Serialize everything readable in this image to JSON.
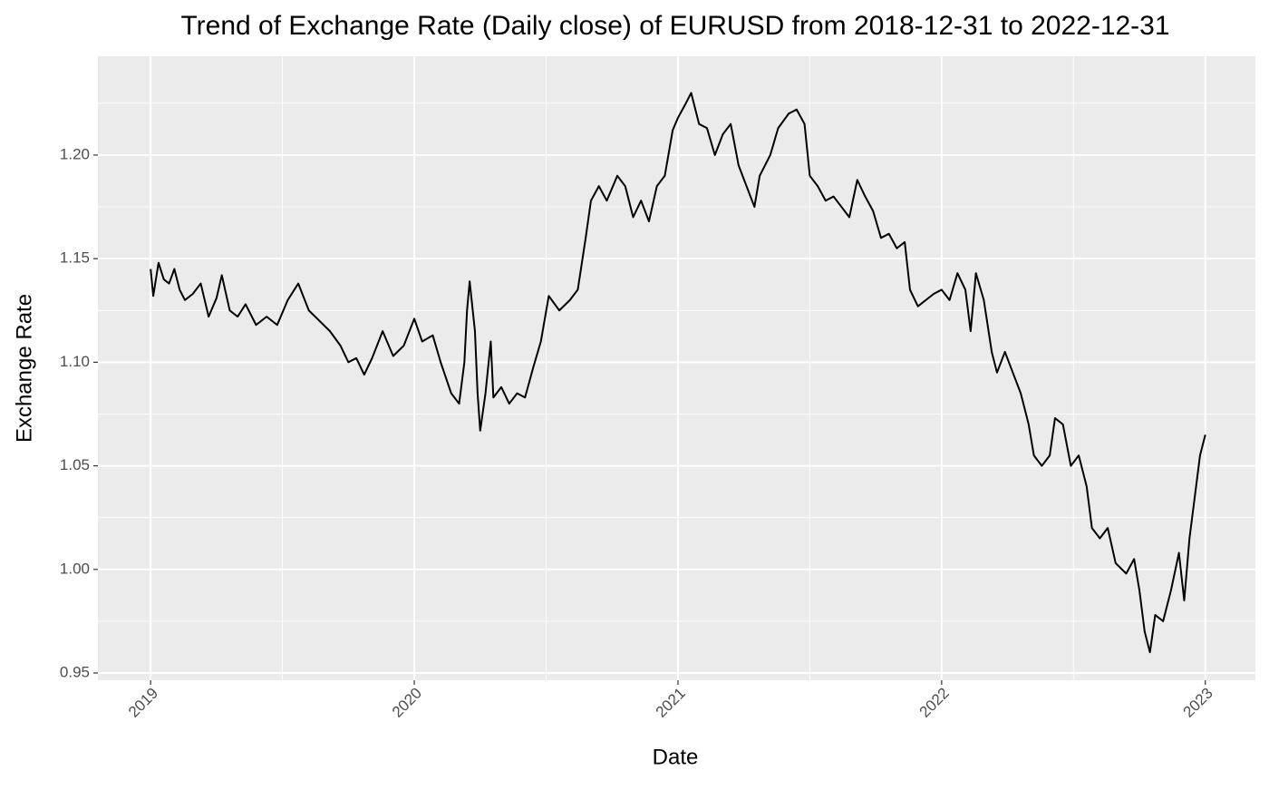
{
  "chart_data": {
    "type": "line",
    "title": "Trend of Exchange Rate (Daily close) of EURUSD from 2018-12-31 to 2022-12-31",
    "xlabel": "Date",
    "ylabel": "Exchange Rate",
    "color": "#000000",
    "grid": true,
    "xlim": [
      2018.8,
      2023.19
    ],
    "xticks": [
      2019,
      2020,
      2021,
      2022,
      2023
    ],
    "minor_xticks": [
      2019.5,
      2020.5,
      2021.5,
      2022.5
    ],
    "ylim": [
      0.9465,
      1.2477
    ],
    "yticks": [
      0.95,
      {
        "value": 1,
        "label": "1.00"
      },
      1.05,
      {
        "value": 1.1,
        "label": "1.10"
      },
      1.15,
      {
        "value": 1.2,
        "label": "1.20"
      }
    ],
    "minor_yticks": [
      0.975,
      1.025,
      1.075,
      1.125,
      1.175,
      1.225
    ],
    "x": [
      2019.0,
      2019.01,
      2019.03,
      2019.05,
      2019.07,
      2019.09,
      2019.11,
      2019.13,
      2019.16,
      2019.19,
      2019.22,
      2019.25,
      2019.27,
      2019.3,
      2019.33,
      2019.36,
      2019.4,
      2019.44,
      2019.48,
      2019.52,
      2019.56,
      2019.6,
      2019.64,
      2019.68,
      2019.72,
      2019.75,
      2019.78,
      2019.81,
      2019.84,
      2019.88,
      2019.92,
      2019.96,
      2020.0,
      2020.03,
      2020.07,
      2020.1,
      2020.14,
      2020.17,
      2020.19,
      2020.2,
      2020.21,
      2020.23,
      2020.24,
      2020.25,
      2020.27,
      2020.29,
      2020.3,
      2020.33,
      2020.36,
      2020.39,
      2020.42,
      2020.45,
      2020.48,
      2020.51,
      2020.55,
      2020.59,
      2020.62,
      2020.65,
      2020.67,
      2020.7,
      2020.73,
      2020.77,
      2020.8,
      2020.83,
      2020.86,
      2020.89,
      2020.92,
      2020.95,
      2020.98,
      2021.0,
      2021.03,
      2021.05,
      2021.08,
      2021.11,
      2021.14,
      2021.17,
      2021.2,
      2021.23,
      2021.26,
      2021.29,
      2021.31,
      2021.35,
      2021.38,
      2021.42,
      2021.45,
      2021.48,
      2021.5,
      2021.53,
      2021.56,
      2021.59,
      2021.62,
      2021.65,
      2021.68,
      2021.71,
      2021.74,
      2021.77,
      2021.8,
      2021.83,
      2021.86,
      2021.88,
      2021.91,
      2021.94,
      2021.97,
      2022.0,
      2022.03,
      2022.06,
      2022.09,
      2022.11,
      2022.13,
      2022.16,
      2022.19,
      2022.21,
      2022.24,
      2022.27,
      2022.3,
      2022.33,
      2022.35,
      2022.38,
      2022.41,
      2022.43,
      2022.46,
      2022.49,
      2022.52,
      2022.55,
      2022.57,
      2022.6,
      2022.63,
      2022.66,
      2022.7,
      2022.73,
      2022.75,
      2022.77,
      2022.79,
      2022.81,
      2022.84,
      2022.87,
      2022.9,
      2022.92,
      2022.94,
      2022.96,
      2022.98,
      2023.0
    ],
    "values": [
      1.145,
      1.132,
      1.148,
      1.14,
      1.138,
      1.145,
      1.135,
      1.13,
      1.133,
      1.138,
      1.122,
      1.131,
      1.142,
      1.125,
      1.122,
      1.128,
      1.118,
      1.122,
      1.118,
      1.13,
      1.138,
      1.125,
      1.12,
      1.115,
      1.108,
      1.1,
      1.102,
      1.094,
      1.102,
      1.115,
      1.103,
      1.108,
      1.121,
      1.11,
      1.113,
      1.1,
      1.085,
      1.08,
      1.1,
      1.125,
      1.139,
      1.115,
      1.085,
      1.067,
      1.085,
      1.11,
      1.083,
      1.088,
      1.08,
      1.085,
      1.083,
      1.097,
      1.11,
      1.132,
      1.125,
      1.13,
      1.135,
      1.16,
      1.178,
      1.185,
      1.178,
      1.19,
      1.185,
      1.17,
      1.178,
      1.168,
      1.185,
      1.19,
      1.212,
      1.218,
      1.225,
      1.23,
      1.215,
      1.213,
      1.2,
      1.21,
      1.215,
      1.195,
      1.185,
      1.175,
      1.19,
      1.2,
      1.213,
      1.22,
      1.222,
      1.215,
      1.19,
      1.185,
      1.178,
      1.18,
      1.175,
      1.17,
      1.188,
      1.18,
      1.173,
      1.16,
      1.162,
      1.155,
      1.158,
      1.135,
      1.127,
      1.13,
      1.133,
      1.135,
      1.13,
      1.143,
      1.135,
      1.115,
      1.143,
      1.13,
      1.105,
      1.095,
      1.105,
      1.095,
      1.085,
      1.07,
      1.055,
      1.05,
      1.055,
      1.073,
      1.07,
      1.05,
      1.055,
      1.04,
      1.02,
      1.015,
      1.02,
      1.003,
      0.998,
      1.005,
      0.99,
      0.97,
      0.96,
      0.978,
      0.975,
      0.99,
      1.008,
      0.985,
      1.015,
      1.035,
      1.055,
      1.065
    ]
  }
}
